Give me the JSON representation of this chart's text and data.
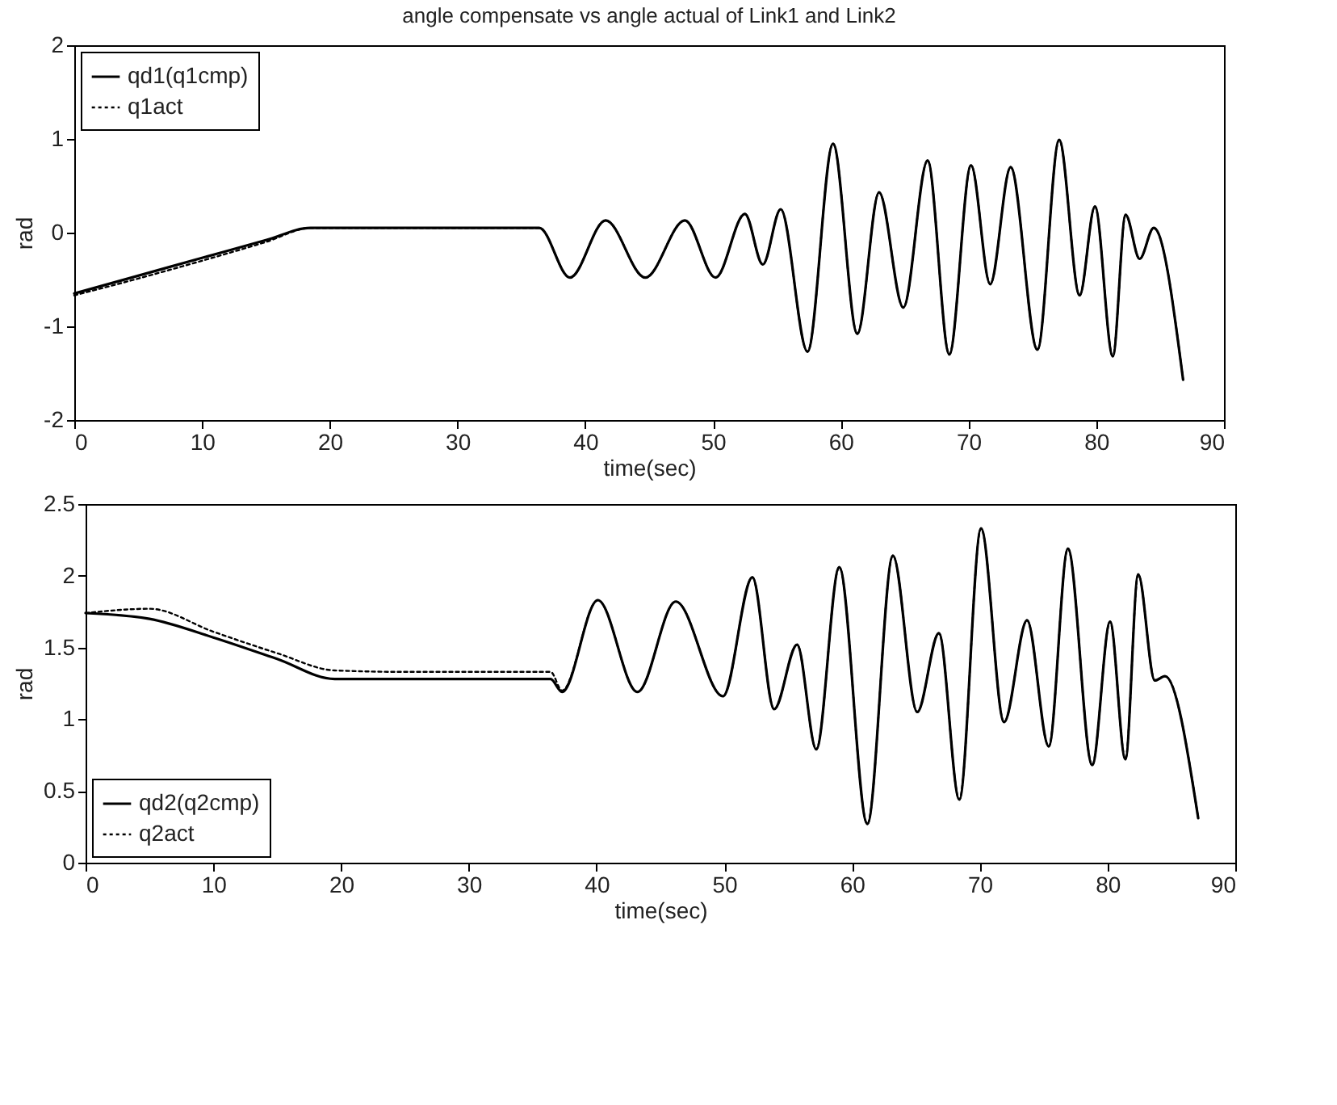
{
  "chart_data": [
    {
      "type": "line",
      "title": "angle compensate vs angle actual of Link1 and Link2",
      "xlabel": "time(sec)",
      "ylabel": "rad",
      "x": [
        0,
        5,
        10,
        15,
        18.5,
        25,
        30,
        36.4,
        38.8,
        41.6,
        44.7,
        47.8,
        50.2,
        52.5,
        53.9,
        55.3,
        57.4,
        59.4,
        61.3,
        63.0,
        64.9,
        66.8,
        68.5,
        70.2,
        71.7,
        73.3,
        75.4,
        77.1,
        78.7,
        79.9,
        81.3,
        82.3,
        83.4,
        84.5,
        86.8
      ],
      "series": [
        {
          "name": "qd1(q1cmp)",
          "color": "#000000",
          "line_style": "solid",
          "values": [
            -0.65,
            -0.46,
            -0.27,
            -0.08,
            0.05,
            0.05,
            0.05,
            0.05,
            -0.48,
            0.13,
            -0.48,
            0.13,
            -0.48,
            0.2,
            -0.34,
            0.25,
            -1.27,
            0.95,
            -1.08,
            0.43,
            -0.8,
            0.77,
            -1.3,
            0.72,
            -0.55,
            0.7,
            -1.25,
            0.99,
            -0.67,
            0.28,
            -1.32,
            0.19,
            -0.28,
            0.05,
            -1.57
          ]
        },
        {
          "name": "q1act",
          "color": "#000000",
          "line_style": "dotted",
          "values": [
            -0.67,
            -0.49,
            -0.3,
            -0.1,
            0.05,
            0.05,
            0.05,
            0.05,
            -0.48,
            0.13,
            -0.48,
            0.13,
            -0.48,
            0.2,
            -0.34,
            0.25,
            -1.27,
            0.95,
            -1.08,
            0.43,
            -0.8,
            0.77,
            -1.3,
            0.72,
            -0.55,
            0.7,
            -1.25,
            0.99,
            -0.67,
            0.28,
            -1.32,
            0.19,
            -0.28,
            0.05,
            -1.57
          ]
        }
      ],
      "xlim": [
        0,
        90
      ],
      "xticks": [
        0,
        10,
        20,
        30,
        40,
        50,
        60,
        70,
        80,
        90
      ],
      "ylim": [
        -2,
        2
      ],
      "yticks": [
        -2,
        -1,
        0,
        1,
        2
      ],
      "legend": "top left"
    },
    {
      "type": "line",
      "xlabel": "time(sec)",
      "ylabel": "rad",
      "x": [
        0,
        5,
        10,
        15,
        19.5,
        25,
        30,
        36.4,
        37.3,
        40.1,
        43.2,
        46.2,
        49.9,
        52.2,
        53.9,
        55.7,
        57.2,
        59.0,
        61.2,
        63.2,
        65.1,
        66.8,
        68.4,
        70.1,
        71.9,
        73.7,
        75.4,
        76.9,
        78.8,
        80.2,
        81.4,
        82.4,
        83.7,
        84.5,
        87.1
      ],
      "series": [
        {
          "name": "qd2(q2cmp)",
          "color": "#000000",
          "line_style": "solid",
          "values": [
            1.74,
            1.7,
            1.57,
            1.42,
            1.28,
            1.28,
            1.28,
            1.28,
            1.19,
            1.83,
            1.19,
            1.82,
            1.16,
            1.99,
            1.07,
            1.52,
            0.79,
            2.06,
            0.27,
            2.14,
            1.05,
            1.6,
            0.44,
            2.33,
            0.98,
            1.69,
            0.81,
            2.19,
            0.68,
            1.68,
            0.72,
            2.01,
            1.27,
            1.3,
            0.31
          ]
        },
        {
          "name": "q2act",
          "color": "#000000",
          "line_style": "dotted",
          "values": [
            1.74,
            1.77,
            1.61,
            1.46,
            1.34,
            1.33,
            1.33,
            1.33,
            1.2,
            1.83,
            1.19,
            1.82,
            1.16,
            1.99,
            1.07,
            1.52,
            0.79,
            2.06,
            0.27,
            2.14,
            1.05,
            1.6,
            0.44,
            2.33,
            0.98,
            1.69,
            0.81,
            2.19,
            0.68,
            1.68,
            0.72,
            2.01,
            1.27,
            1.3,
            0.31
          ]
        }
      ],
      "xlim": [
        0,
        90
      ],
      "xticks": [
        0,
        10,
        20,
        30,
        40,
        50,
        60,
        70,
        80,
        90
      ],
      "ylim": [
        0,
        2.5
      ],
      "yticks": [
        0,
        0.5,
        1,
        1.5,
        2,
        2.5
      ],
      "legend": "bottom left"
    }
  ]
}
